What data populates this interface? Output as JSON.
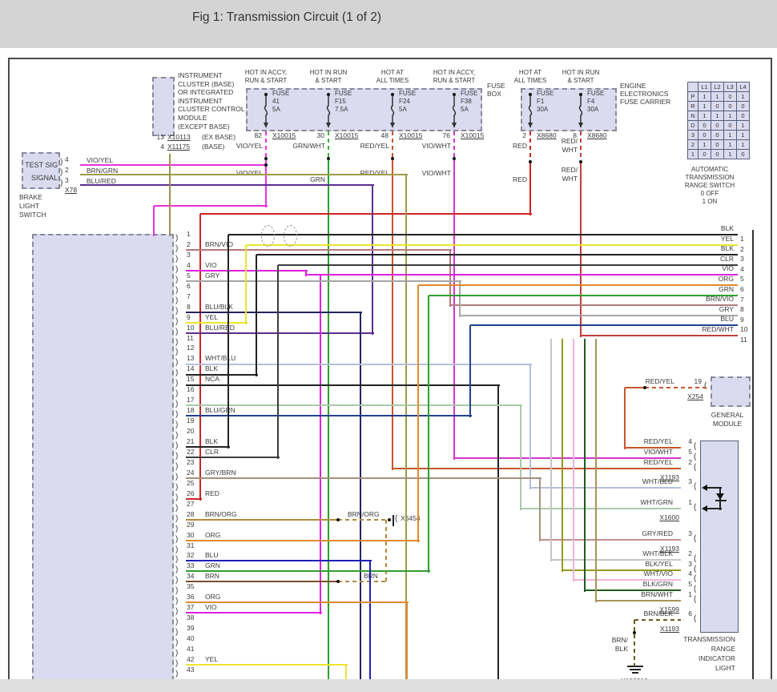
{
  "page": {
    "title": "Fig 1: Transmission Circuit (1 of 2)"
  },
  "colors": {
    "box_fill": "#dbdbf0",
    "page_band": "#d4d4d4",
    "wire_red": "#cc2424",
    "wire_green": "#2f9e2f",
    "wire_magenta": "#e020e0"
  },
  "instrument_cluster": {
    "lines": [
      "INSTRUMENT",
      "CLUSTER (BASE)",
      "OR INTEGRATED",
      "INSTRUMENT",
      "CLUSTER CONTROL",
      "MODULE",
      "(EXCEPT BASE)"
    ],
    "pins": [
      {
        "num": "13",
        "conn": "X10113",
        "note": "(EX BASE)"
      },
      {
        "num": "4",
        "conn": "X11175",
        "note": "(BASE)"
      }
    ]
  },
  "fuse_box": {
    "label_lines": [
      "FUSE",
      "BOX"
    ],
    "fuses": [
      {
        "header": [
          "HOT IN ACCY,",
          "RUN & START"
        ],
        "name": "FUSE",
        "id": "41",
        "amps": "5A",
        "pin": "82",
        "conn": "X10015",
        "wire": [
          "VIO/YEL"
        ],
        "wire2": [
          "VIO/YEL"
        ]
      },
      {
        "header": [
          "HOT IN RUN",
          "& START"
        ],
        "name": "FUSE",
        "id": "F15",
        "amps": "7.5A",
        "pin": "30",
        "conn": "X10015",
        "wire": [
          "GRN/WHT"
        ],
        "wire2": [
          "GRN"
        ]
      },
      {
        "header": [
          "HOT AT",
          "ALL TIMES"
        ],
        "name": "FUSE",
        "id": "F24",
        "amps": "5A",
        "pin": "48",
        "conn": "X10015",
        "wire": [
          "RED/YEL"
        ],
        "wire2": [
          "RED/YEL"
        ]
      },
      {
        "header": [
          "HOT IN ACCY,",
          "RUN & START"
        ],
        "name": "FUSE",
        "id": "F38",
        "amps": "5A",
        "pin": "76",
        "conn": "X10015",
        "wire": [
          "VIO/WHT"
        ],
        "wire2": [
          "VIO/WHT"
        ]
      }
    ]
  },
  "fuse_carrier": {
    "label_lines": [
      "ENGINE",
      "ELECTRONICS",
      "FUSE CARRIER"
    ],
    "fuses": [
      {
        "header": [
          "HOT AT",
          "ALL TIMES"
        ],
        "name": "FUSE",
        "id": "F1",
        "amps": "30A",
        "pin": "2",
        "conn": "X8680",
        "wire": [
          "RED"
        ],
        "wire2": [
          "RED"
        ]
      },
      {
        "header": [
          "HOT IN RUN",
          "& START"
        ],
        "name": "FUSE",
        "id": "F4",
        "amps": "30A",
        "pin": "8",
        "conn": "X8680",
        "wire": [
          "RED/",
          "WHT"
        ],
        "wire2": [
          "RED/",
          "WHT"
        ]
      }
    ]
  },
  "range_switch": {
    "cols": [
      "L1",
      "L2",
      "L3",
      "L4"
    ],
    "rows": [
      [
        "P",
        "1",
        "1",
        "0",
        "1"
      ],
      [
        "R",
        "1",
        "0",
        "0",
        "0"
      ],
      [
        "N",
        "1",
        "1",
        "1",
        "0"
      ],
      [
        "D",
        "0",
        "0",
        "0",
        "1"
      ],
      [
        "3",
        "0",
        "0",
        "1",
        "1"
      ],
      [
        "2",
        "1",
        "0",
        "1",
        "1"
      ],
      [
        "1",
        "0",
        "0",
        "1",
        "0"
      ]
    ],
    "caption": [
      "AUTOMATIC",
      "TRANSMISSION",
      "RANGE SWITCH",
      "0 OFF",
      "1 ON"
    ]
  },
  "brake_switch": {
    "box_lines": [
      "TEST SIG",
      "SIGNAL"
    ],
    "pins": [
      {
        "num": "4",
        "wire": "VIO/YEL"
      },
      {
        "num": "2",
        "wire": "BRN/GRN"
      },
      {
        "num": "3",
        "wire": "BLU/RED"
      }
    ],
    "conn": "X78",
    "label": [
      "BRAKE",
      "LIGHT",
      "SWITCH"
    ]
  },
  "left_connector": {
    "count": 43,
    "labels": {
      "2": "BRN/VIO",
      "4": "VIO",
      "5": "GRY",
      "8": "BLU/BLK",
      "9": "YEL",
      "10": "BLU/RED",
      "13": "WHT/BLU",
      "14": "BLK",
      "15": "NCA",
      "18": "BLU/GRN",
      "21": "BLK",
      "22": "CLR",
      "24": "GRY/BRN",
      "26": "RED",
      "28": "BRN/ORG",
      "30": "ORG",
      "32": "BLU",
      "33": "GRN",
      "34": "BRN",
      "36": "ORG",
      "37": "VIO",
      "42": "YEL"
    }
  },
  "right_connector": {
    "pins": [
      "BLK",
      "YEL",
      "BLK",
      "CLR",
      "VIO",
      "ORG",
      "GRN",
      "BRN/VIO",
      "GRY",
      "BLU",
      "RED/WHT"
    ]
  },
  "general_module": {
    "wire": "RED/YEL",
    "pin": "19",
    "conn": "X254",
    "name": [
      "GENERAL",
      "MODULE"
    ]
  },
  "range_indicator": {
    "rows": [
      {
        "label": "RED/YEL",
        "pin": "4"
      },
      {
        "label": "VIO/WHT",
        "pin": "5"
      },
      {
        "label": "RED/YEL",
        "pin": "2",
        "conn": "X1193"
      },
      {
        "label": "WHT/BLU",
        "pin": "3"
      },
      {
        "label": "WHT/GRN",
        "pin": "1",
        "conn": "X1600"
      },
      {
        "label": "GRY/RED",
        "pin": "3",
        "conn": "X1193"
      },
      {
        "label": "WHT/BLK",
        "pin": "2"
      },
      {
        "label": "BLK/YEL",
        "pin": "3"
      },
      {
        "label": "WHT/VIO",
        "pin": "4"
      },
      {
        "label": "BLK/GRN",
        "pin": "5"
      },
      {
        "label": "BRN/WHT",
        "pin": "1",
        "conn": "X1599"
      },
      {
        "label": "BRN/BLK",
        "pin": "6",
        "conn": "X1193"
      }
    ],
    "name": [
      "TRANSMISSION",
      "RANGE",
      "INDICATOR",
      "LIGHT"
    ]
  },
  "inline_connector": {
    "conn": "X6454",
    "wire_top": "BRN/ORG",
    "wire_bottom": "BRN"
  },
  "ground": {
    "wire": [
      "BRN/",
      "BLK"
    ],
    "conn": "X100010"
  }
}
